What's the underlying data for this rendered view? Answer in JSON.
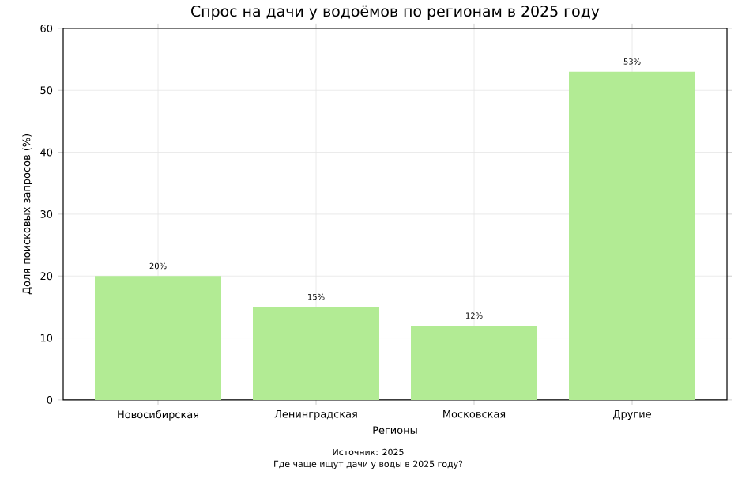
{
  "chart_data": {
    "type": "bar",
    "title": "Спрос на дачи у водоёмов по регионам в 2025 году",
    "xlabel": "Регионы",
    "ylabel": "Доля поисковых запросов (%)",
    "categories": [
      "Новосибирская",
      "Ленинградская",
      "Московская",
      "Другие"
    ],
    "values": [
      20,
      15,
      12,
      53
    ],
    "value_labels": [
      "20%",
      "15%",
      "12%",
      "53%"
    ],
    "color": "#b2eb94",
    "ylim": [
      0,
      60
    ],
    "yticks": [
      0,
      10,
      20,
      30,
      40,
      50,
      60
    ],
    "grid": true,
    "annotations": [
      "Источник: 2025",
      "Где чаще ищут дачи у воды в 2025 году?"
    ]
  }
}
